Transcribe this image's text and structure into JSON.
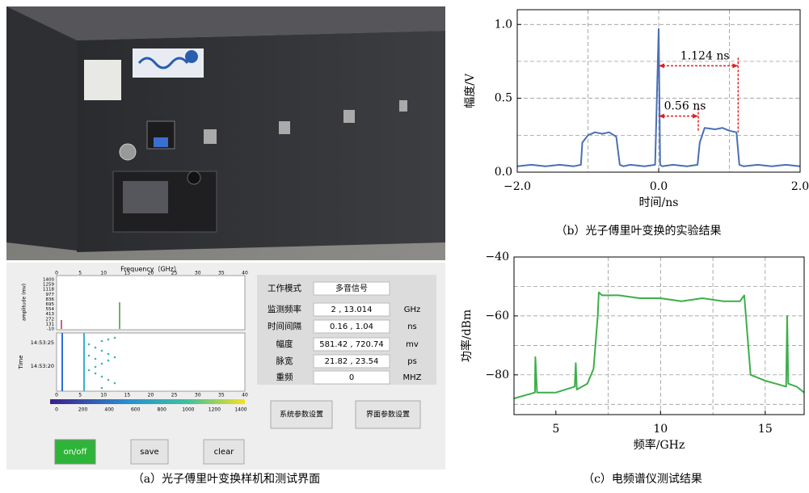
{
  "panel_a": {
    "caption": "（a）光子傅里叶变换样机和测试界面",
    "ui": {
      "freq_axis_label": "Frequency（GHz）",
      "top_ticks": [
        0,
        5,
        10,
        15,
        20,
        25,
        30,
        35,
        40
      ],
      "amp_label": "amplitude (mv)",
      "amp_ticks": [
        1400,
        1259,
        1118,
        977,
        836,
        695,
        554,
        413,
        272,
        131,
        -10
      ],
      "time_label": "Time",
      "time_ticks": [
        "14:53:25",
        "14:53:20"
      ],
      "bottom_ticks": [
        0,
        5,
        10,
        15,
        20,
        25,
        30,
        35,
        40
      ],
      "colorbar_ticks": [
        0,
        200,
        400,
        600,
        800,
        1000,
        1200,
        1400
      ],
      "params": [
        {
          "label": "工作模式",
          "value": "多音信号"
        },
        {
          "label": "监测频率",
          "value": "2 , 13.014",
          "unit": "GHz"
        },
        {
          "label": "时间间隔",
          "value": "0.16 , 1.04",
          "unit": "ns"
        },
        {
          "label": "幅度",
          "value": "581.42 , 720.74",
          "unit": "mv"
        },
        {
          "label": "脉宽",
          "value": "21.82 , 23.54",
          "unit": "ps"
        },
        {
          "label": "重频",
          "value": "0",
          "unit": "MHZ"
        }
      ],
      "buttons": [
        "系统参数设置",
        "界面参数设置",
        "on/off",
        "save",
        "clear"
      ]
    }
  },
  "chart_data": [
    {
      "type": "line",
      "caption": "（b）光子傅里叶变换的实验结果",
      "x_label": "时间/ns",
      "y_label": "幅度/V",
      "xlim": [
        -2,
        2
      ],
      "ylim": [
        0,
        1.1
      ],
      "xticks": [
        {
          "value": -2,
          "label": "−2.0"
        },
        {
          "value": 0,
          "label": "0.0"
        },
        {
          "value": 2,
          "label": "2.0"
        }
      ],
      "yticks": [
        {
          "value": 0,
          "label": "0.0"
        },
        {
          "value": 0.5,
          "label": "0.5"
        },
        {
          "value": 1,
          "label": "1.0"
        }
      ],
      "xgrid": [
        -1,
        0,
        1
      ],
      "ygrid": [
        0.25,
        0.5,
        0.75,
        1.0
      ],
      "color": "#4a6fb5",
      "x": [
        -2,
        -1.8,
        -1.6,
        -1.4,
        -1.2,
        -1.1,
        -1.08,
        -1.0,
        -0.9,
        -0.8,
        -0.7,
        -0.6,
        -0.55,
        -0.5,
        -0.4,
        -0.2,
        -0.05,
        0,
        0.02,
        0.05,
        0.2,
        0.4,
        0.55,
        0.58,
        0.65,
        0.8,
        0.9,
        1.0,
        1.1,
        1.14,
        1.2,
        1.4,
        1.6,
        1.8,
        2.0
      ],
      "values": [
        0.04,
        0.05,
        0.04,
        0.05,
        0.04,
        0.05,
        0.2,
        0.25,
        0.27,
        0.26,
        0.27,
        0.24,
        0.05,
        0.04,
        0.05,
        0.04,
        0.05,
        0.97,
        0.05,
        0.04,
        0.05,
        0.04,
        0.05,
        0.2,
        0.3,
        0.29,
        0.3,
        0.28,
        0.27,
        0.05,
        0.04,
        0.05,
        0.04,
        0.05,
        0.04
      ],
      "annotations": [
        {
          "text": "1.124 ns",
          "x": [
            0,
            1.124
          ],
          "y": 0.72
        },
        {
          "text": "0.56 ns",
          "x": [
            0,
            0.56
          ],
          "y": 0.38
        }
      ]
    },
    {
      "type": "line",
      "caption": "（c）电频谱仪测试结果",
      "x_label": "频率/GHz",
      "y_label": "功率/dBm",
      "xlim": [
        3,
        16.86
      ],
      "ylim": [
        -93.5,
        -40
      ],
      "xticks": [
        5,
        10,
        15
      ],
      "yticks": [
        {
          "value": -40,
          "label": "−40"
        },
        {
          "value": -60,
          "label": "−60"
        },
        {
          "value": -80,
          "label": "−80"
        }
      ],
      "xgrid": [
        7.5,
        10,
        12.5,
        15
      ],
      "ygrid": [
        -50,
        -60,
        -70,
        -80,
        -90
      ],
      "color": "#3dae49",
      "x": [
        3,
        3.5,
        4,
        4.02,
        4.1,
        5,
        5.9,
        5.95,
        6.0,
        6.5,
        6.8,
        7.0,
        7.05,
        7.2,
        8,
        9,
        10,
        11,
        12,
        13,
        13.8,
        14.0,
        14.3,
        15,
        15.5,
        16,
        16.05,
        16.1,
        16.5,
        16.86
      ],
      "values": [
        -88,
        -87,
        -86,
        -74,
        -86,
        -86,
        -84,
        -76,
        -85,
        -83,
        -78,
        -60,
        -52,
        -53,
        -53,
        -54,
        -54,
        -55,
        -54,
        -55,
        -55,
        -53,
        -80,
        -82,
        -83,
        -84,
        -60,
        -83,
        -84,
        -86
      ]
    }
  ]
}
